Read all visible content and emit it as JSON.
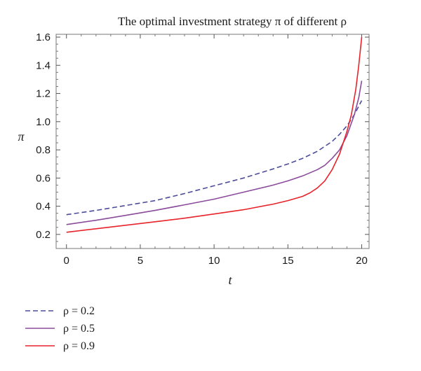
{
  "chart_data": {
    "type": "line",
    "title": "The optimal investment strategy π of different ρ",
    "xlabel": "t",
    "ylabel": "π",
    "xlim": [
      -0.7,
      20.5
    ],
    "ylim": [
      0.1,
      1.62
    ],
    "xticks": [
      0,
      5,
      10,
      15,
      20
    ],
    "yticks": [
      0.2,
      0.4,
      0.6,
      0.8,
      1.0,
      1.2,
      1.4,
      1.6
    ],
    "ytick_labels": [
      "0.2",
      "0.4",
      "0.6",
      "0.8",
      "1.0",
      "1.2",
      "1.4",
      "1.6"
    ],
    "legend_placement": "bottom-left, below plot",
    "grid": false,
    "series": [
      {
        "name": "ρ = 0.2",
        "color": "#4b4b9a",
        "style": "dashed",
        "x": [
          0,
          2,
          4,
          6,
          8,
          10,
          12,
          14,
          15,
          16,
          17,
          18,
          18.5,
          19,
          19.5,
          20
        ],
        "y": [
          0.34,
          0.37,
          0.405,
          0.44,
          0.49,
          0.545,
          0.6,
          0.665,
          0.7,
          0.74,
          0.79,
          0.86,
          0.91,
          0.97,
          1.05,
          1.15
        ]
      },
      {
        "name": "ρ = 0.5",
        "color": "#8b4b9b",
        "style": "solid",
        "x": [
          0,
          2,
          4,
          6,
          8,
          10,
          12,
          14,
          15,
          16,
          17,
          17.5,
          18,
          18.5,
          19,
          19.5,
          19.8,
          20
        ],
        "y": [
          0.27,
          0.3,
          0.335,
          0.37,
          0.41,
          0.45,
          0.5,
          0.55,
          0.58,
          0.615,
          0.66,
          0.69,
          0.74,
          0.8,
          0.9,
          1.05,
          1.17,
          1.29
        ]
      },
      {
        "name": "ρ = 0.9",
        "color": "#e8232a",
        "style": "solid",
        "x": [
          0,
          2,
          4,
          6,
          8,
          10,
          12,
          14,
          15,
          16,
          16.5,
          17,
          17.5,
          18,
          18.5,
          19,
          19.3,
          19.6,
          19.8,
          20
        ],
        "y": [
          0.215,
          0.24,
          0.265,
          0.29,
          0.315,
          0.345,
          0.375,
          0.415,
          0.44,
          0.47,
          0.495,
          0.53,
          0.58,
          0.66,
          0.77,
          0.93,
          1.05,
          1.23,
          1.4,
          1.6
        ]
      }
    ]
  }
}
